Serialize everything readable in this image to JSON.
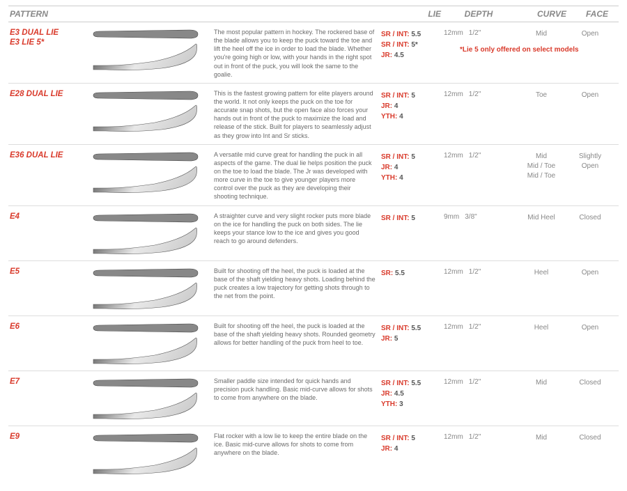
{
  "colors": {
    "accent": "#d93a2b",
    "text_muted": "#888888",
    "text_body": "#6a6a6a",
    "border": "#dddddd",
    "blade_dark": "#4a4a4a",
    "blade_light": "#cfcfcf"
  },
  "headers": {
    "pattern": "PATTERN",
    "lie": "LIE",
    "depth": "DEPTH",
    "curve": "CURVE",
    "face": "FACE"
  },
  "footnote": "*Lie 5 only offered on select models",
  "rows": [
    {
      "pattern_line1": "E3  DUAL LIE",
      "pattern_line2": "E3  LIE 5*",
      "description": "The most popular pattern in hockey. The rockered base of the blade allows you to keep the puck toward the toe and lift the heel off the ice in order to load the blade. Whether you're going high or low, with your hands in the right spot out in front of the puck, you will look the same to the goalie.",
      "lie": [
        {
          "label": "SR / INT:",
          "value": "5.5"
        },
        {
          "label": "SR / INT:",
          "value": "5*"
        },
        {
          "label": "JR:",
          "value": "4.5"
        }
      ],
      "depth_mm": "12mm",
      "depth_in": "1/2\"",
      "curve": "Mid",
      "face": "Open",
      "has_footnote": true
    },
    {
      "pattern_line1": "E28  DUAL LIE",
      "pattern_line2": "",
      "description": "This is the fastest growing pattern for elite players around the world. It not only keeps the puck on the toe for accurate snap shots, but the open face also forces your hands out in front of the puck to maximize the load and release of the stick. Built for players to seamlessly adjust as they grow into Int and Sr sticks.",
      "lie": [
        {
          "label": "SR / INT:",
          "value": "5"
        },
        {
          "label": "JR:",
          "value": "4"
        },
        {
          "label": "YTH:",
          "value": "4"
        }
      ],
      "depth_mm": "12mm",
      "depth_in": "1/2\"",
      "curve": "Toe",
      "face": "Open",
      "has_footnote": false
    },
    {
      "pattern_line1": "E36  DUAL LIE",
      "pattern_line2": "",
      "description": "A versatile mid curve great for handling the puck in all aspects of the game. The dual lie helps position the puck on the toe to load the blade. The Jr was developed with more curve in the toe to give younger players more control over the puck as they are developing their shooting technique.",
      "lie": [
        {
          "label": "SR / INT:",
          "value": "5"
        },
        {
          "label": "JR:",
          "value": "4"
        },
        {
          "label": "YTH:",
          "value": "4"
        }
      ],
      "depth_mm": "12mm",
      "depth_in": "1/2\"",
      "curve": "Mid\nMid / Toe\nMid / Toe",
      "face": "Slightly\nOpen",
      "has_footnote": false
    },
    {
      "pattern_line1": "E4",
      "pattern_line2": "",
      "description": "A straighter curve and very slight rocker puts more blade on the ice for handling the puck on both sides. The lie keeps your stance low to the ice and gives you good reach to go around defenders.",
      "lie": [
        {
          "label": "SR / INT:",
          "value": "5"
        }
      ],
      "depth_mm": "9mm",
      "depth_in": "3/8\"",
      "curve": "Mid Heel",
      "face": "Closed",
      "has_footnote": false
    },
    {
      "pattern_line1": "E5",
      "pattern_line2": "",
      "description": "Built for shooting off the heel, the puck is loaded at the base of the shaft yielding heavy shots. Loading behind the puck creates a low trajectory for getting shots through to the net from the point.",
      "lie": [
        {
          "label": "SR:",
          "value": "5.5"
        }
      ],
      "depth_mm": "12mm",
      "depth_in": "1/2\"",
      "curve": "Heel",
      "face": "Open",
      "has_footnote": false
    },
    {
      "pattern_line1": "E6",
      "pattern_line2": "",
      "description": "Built for shooting off the heel, the puck is loaded at the base of the shaft yielding heavy shots. Rounded geometry allows for better handling of the puck from heel to toe.",
      "lie": [
        {
          "label": "SR / INT:",
          "value": "5.5"
        },
        {
          "label": "JR:",
          "value": "5"
        }
      ],
      "depth_mm": "12mm",
      "depth_in": "1/2\"",
      "curve": "Heel",
      "face": "Open",
      "has_footnote": false
    },
    {
      "pattern_line1": "E7",
      "pattern_line2": "",
      "description": "Smaller paddle size intended for quick hands and precision puck handling. Basic mid-curve allows for shots to come from anywhere on the blade.",
      "lie": [
        {
          "label": "SR / INT:",
          "value": "5.5"
        },
        {
          "label": "JR:",
          "value": "4.5"
        },
        {
          "label": "YTH:",
          "value": "3"
        }
      ],
      "depth_mm": "12mm",
      "depth_in": "1/2\"",
      "curve": "Mid",
      "face": "Closed",
      "has_footnote": false
    },
    {
      "pattern_line1": "E9",
      "pattern_line2": "",
      "description": "Flat rocker with a low lie to keep the entire blade on the ice. Basic mid-curve allows for shots to come from anywhere on the blade.",
      "lie": [
        {
          "label": "SR / INT:",
          "value": "5"
        },
        {
          "label": "JR:",
          "value": "4"
        }
      ],
      "depth_mm": "12mm",
      "depth_in": "1/2\"",
      "curve": "Mid",
      "face": "Closed",
      "has_footnote": false
    }
  ]
}
